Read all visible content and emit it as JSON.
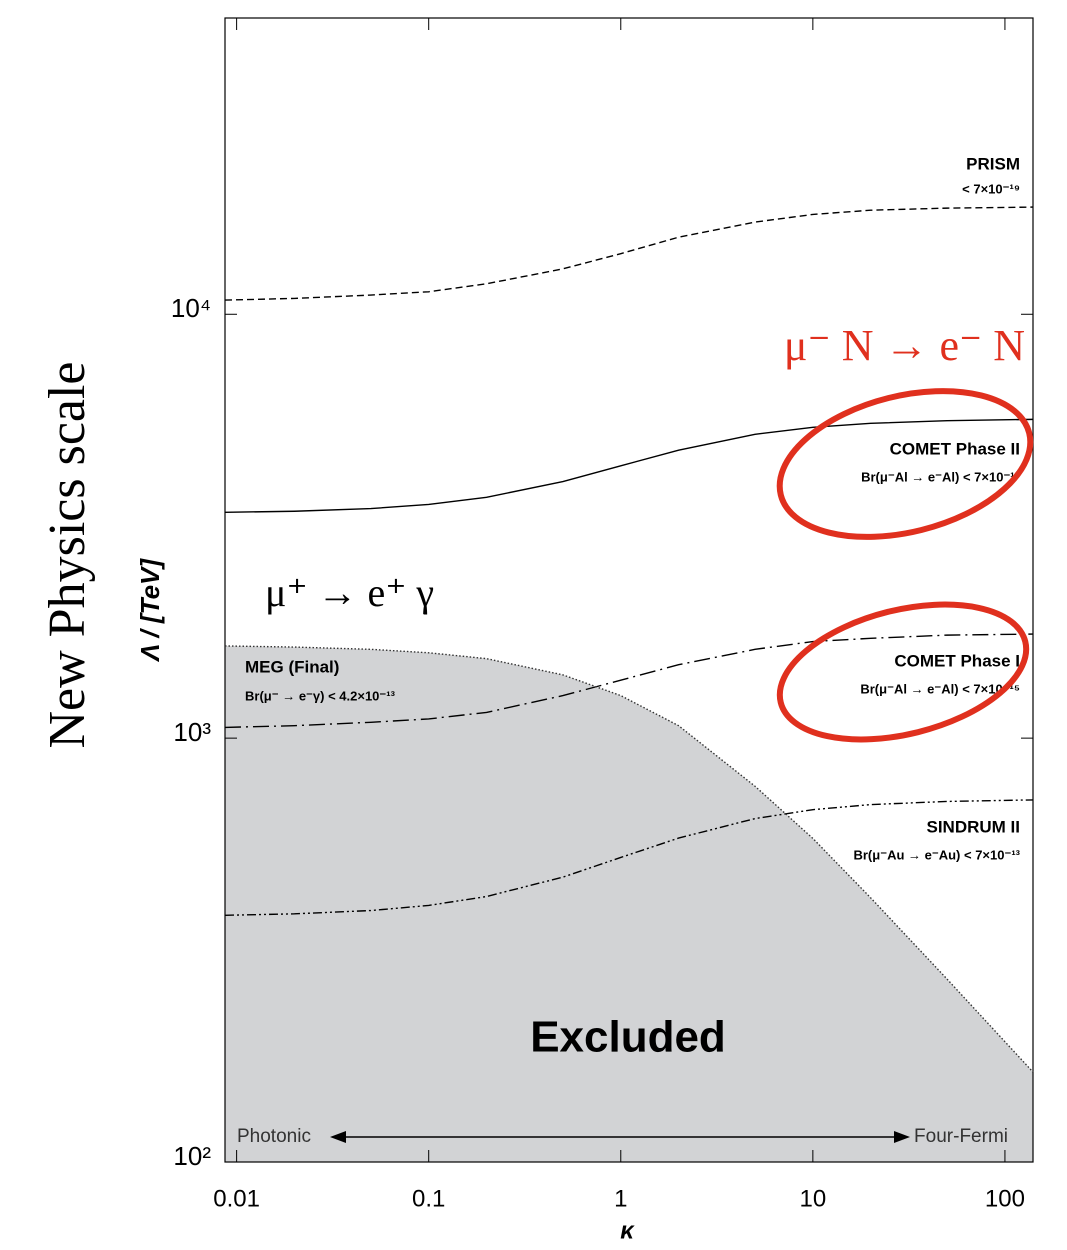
{
  "chart_data": {
    "type": "line",
    "y_label": "Λ / [TeV]",
    "x_label": "κ",
    "side_label": "New Physics scale",
    "log_x": true,
    "log_y": true,
    "xlim": [
      0.0087,
      140
    ],
    "ylim": [
      100,
      50000
    ],
    "xticks": [
      0.01,
      0.1,
      1,
      10,
      100
    ],
    "yticks": [
      {
        "value": 100,
        "label": "10²"
      },
      {
        "value": 1000,
        "label": "10³"
      },
      {
        "value": 10000,
        "label": "10⁴"
      }
    ],
    "x": [
      0.0087,
      0.02,
      0.05,
      0.1,
      0.2,
      0.5,
      1,
      2,
      5,
      10,
      20,
      50,
      140
    ],
    "series": [
      {
        "name": "PRISM",
        "limit": "< 7×10⁻¹⁹",
        "color": "#000000",
        "style": "dashed",
        "values": [
          10800,
          10900,
          11100,
          11300,
          11800,
          12800,
          13900,
          15200,
          16500,
          17200,
          17600,
          17800,
          17900
        ]
      },
      {
        "name": "COMET Phase II",
        "limit": "Br(μ⁻Al → e⁻Al) < 7×10⁻¹⁷",
        "color": "#000000",
        "style": "solid",
        "values": [
          3410,
          3430,
          3480,
          3560,
          3700,
          4030,
          4390,
          4780,
          5210,
          5410,
          5530,
          5610,
          5650
        ]
      },
      {
        "name": "COMET Phase I",
        "limit": "Br(μ⁻Al → e⁻Al) < 7×10⁻¹⁵",
        "color": "#000000",
        "style": "dashdot",
        "values": [
          1060,
          1070,
          1090,
          1110,
          1150,
          1260,
          1370,
          1490,
          1620,
          1690,
          1720,
          1750,
          1760
        ]
      },
      {
        "name": "SINDRUM II",
        "limit": "Br(μ⁻Au → e⁻Au) < 7×10⁻¹³",
        "color": "#000000",
        "style": "dashdotdot",
        "values": [
          382,
          385,
          392,
          403,
          423,
          470,
          523,
          581,
          646,
          678,
          697,
          709,
          715
        ]
      },
      {
        "name": "MEG (Final)",
        "limit": "Br(μ⁻ → e⁻γ) < 4.2×10⁻¹³",
        "color": "#333333",
        "style": "dotted",
        "fill": "#d2d3d5",
        "values": [
          1650,
          1640,
          1620,
          1590,
          1540,
          1410,
          1260,
          1070,
          770,
          580,
          420,
          270,
          163
        ]
      }
    ],
    "annotations": {
      "excluded": "Excluded",
      "photonic": "Photonic",
      "four_fermi": "Four-Fermi",
      "meg_process": "μ⁺ → e⁺ γ",
      "conversion_process": "μ⁻ N → e⁻ N"
    }
  }
}
